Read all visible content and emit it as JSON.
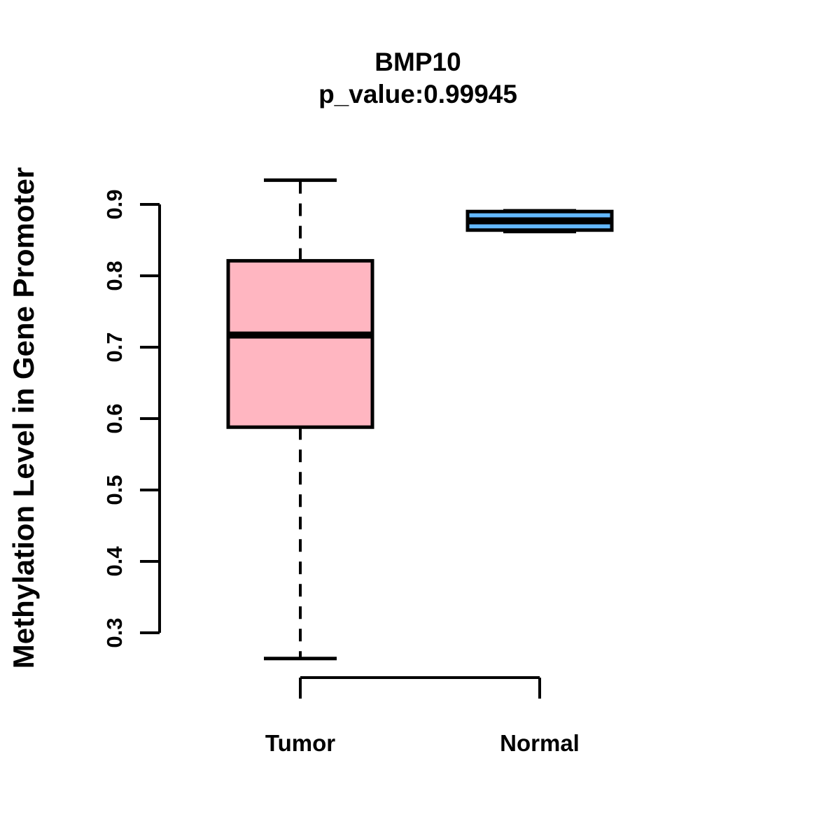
{
  "chart_data": {
    "type": "boxplot",
    "title": "BMP10",
    "subtitle": "p_value:0.99945",
    "ylabel": "Methylation Level in Gene Promoter",
    "xlabel": "",
    "yticks": [
      0.3,
      0.4,
      0.5,
      0.6,
      0.7,
      0.8,
      0.9
    ],
    "ylim": [
      0.26,
      0.94
    ],
    "grid": false,
    "legend": "none",
    "categories": [
      "Tumor",
      "Normal"
    ],
    "series": [
      {
        "name": "Tumor",
        "fill_color": "#FFB6C1",
        "lower_whisker": 0.264,
        "q1": 0.588,
        "median": 0.717,
        "q3": 0.821,
        "upper_whisker": 0.934
      },
      {
        "name": "Normal",
        "fill_color": "#63B8FF",
        "lower_whisker": 0.862,
        "q1": 0.864,
        "median": 0.877,
        "q3": 0.89,
        "upper_whisker": 0.891
      }
    ],
    "line_color": "#000000",
    "background_color": "#FFFFFF"
  }
}
